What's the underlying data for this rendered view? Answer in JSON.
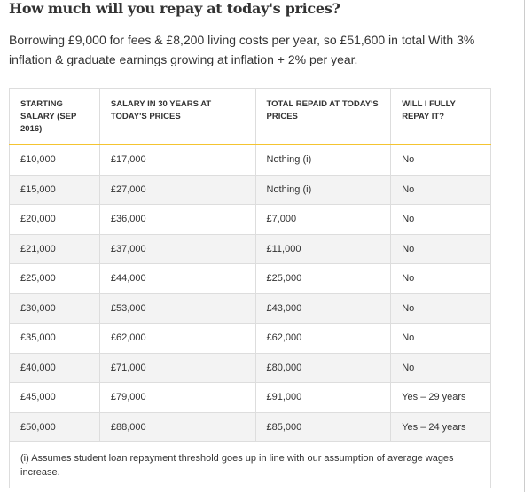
{
  "header": {
    "title": "How much will you repay at today's prices?",
    "intro": "Borrowing £9,000 for fees & £8,200 living costs per year, so £51,600 in total With 3% inflation & graduate earnings growing at inflation + 2% per year."
  },
  "table": {
    "columns": [
      "STARTING SALARY (SEP 2016)",
      "SALARY IN 30 YEARS AT TODAY'S PRICES",
      "TOTAL REPAID AT TODAY'S PRICES",
      "WILL I FULLY REPAY IT?"
    ],
    "rows": [
      [
        "£10,000",
        "£17,000",
        "Nothing (i)",
        "No"
      ],
      [
        "£15,000",
        "£27,000",
        "Nothing (i)",
        "No"
      ],
      [
        "£20,000",
        "£36,000",
        "£7,000",
        "No"
      ],
      [
        "£21,000",
        "£37,000",
        "£11,000",
        "No"
      ],
      [
        "£25,000",
        "£44,000",
        "£25,000",
        "No"
      ],
      [
        "£30,000",
        "£53,000",
        "£43,000",
        "No"
      ],
      [
        "£35,000",
        "£62,000",
        "£62,000",
        "No"
      ],
      [
        "£40,000",
        "£71,000",
        "£80,000",
        "No"
      ],
      [
        "£45,000",
        "£79,000",
        "£91,000",
        "Yes – 29 years"
      ],
      [
        "£50,000",
        "£88,000",
        "£85,000",
        "Yes – 24 years"
      ]
    ],
    "footnote": "(i) Assumes student loan repayment threshold goes up in line with our assumption of average wages increase."
  }
}
